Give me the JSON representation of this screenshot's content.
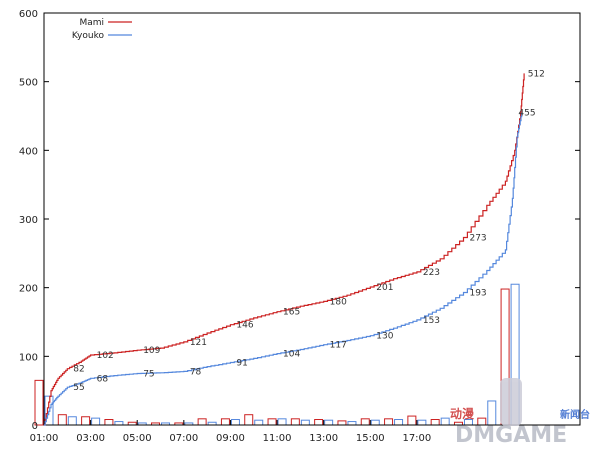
{
  "chart_data": {
    "type": "line",
    "xlim": [
      1,
      24
    ],
    "ylim": [
      0,
      600
    ],
    "y_ticks": [
      0,
      100,
      200,
      300,
      400,
      500,
      600
    ],
    "x_ticks": [
      {
        "x": 1,
        "label": "01:00"
      },
      {
        "x": 3,
        "label": "03:00"
      },
      {
        "x": 5,
        "label": "05:00"
      },
      {
        "x": 7,
        "label": "07:00"
      },
      {
        "x": 9,
        "label": "09:00"
      },
      {
        "x": 11,
        "label": "11:00"
      },
      {
        "x": 13,
        "label": "13:00"
      },
      {
        "x": 15,
        "label": "15:00"
      },
      {
        "x": 17,
        "label": "17:00"
      }
    ],
    "legend_position": "top-left",
    "grid": false,
    "series": [
      {
        "name": "Mami",
        "color": "#cc2222",
        "points": [
          [
            1,
            0
          ],
          [
            1.3,
            50
          ],
          [
            1.6,
            68
          ],
          [
            2,
            82
          ],
          [
            2.6,
            93
          ],
          [
            3,
            102
          ],
          [
            4,
            105
          ],
          [
            5,
            109
          ],
          [
            6,
            112
          ],
          [
            7,
            121
          ],
          [
            8,
            134
          ],
          [
            9,
            146
          ],
          [
            10,
            156
          ],
          [
            11,
            165
          ],
          [
            12,
            173
          ],
          [
            13,
            180
          ],
          [
            14,
            189
          ],
          [
            15,
            201
          ],
          [
            16,
            213
          ],
          [
            17,
            223
          ],
          [
            18,
            242
          ],
          [
            19,
            273
          ],
          [
            20,
            320
          ],
          [
            20.8,
            355
          ],
          [
            21.2,
            400
          ],
          [
            21.45,
            455
          ],
          [
            21.6,
            512
          ]
        ],
        "labels": [
          {
            "x": 2,
            "y": 82,
            "text": "82"
          },
          {
            "x": 3,
            "y": 102,
            "text": "102"
          },
          {
            "x": 5,
            "y": 109,
            "text": "109"
          },
          {
            "x": 7,
            "y": 121,
            "text": "121"
          },
          {
            "x": 9,
            "y": 146,
            "text": "146"
          },
          {
            "x": 11,
            "y": 165,
            "text": "165"
          },
          {
            "x": 13,
            "y": 180,
            "text": "180"
          },
          {
            "x": 15,
            "y": 201,
            "text": "201"
          },
          {
            "x": 17,
            "y": 223,
            "text": "223"
          },
          {
            "x": 19,
            "y": 273,
            "text": "273"
          },
          {
            "x": 21.5,
            "y": 512,
            "text": "512"
          }
        ]
      },
      {
        "name": "Kyouko",
        "color": "#5588dd",
        "points": [
          [
            1,
            0
          ],
          [
            1.3,
            30
          ],
          [
            1.6,
            42
          ],
          [
            2,
            55
          ],
          [
            2.6,
            62
          ],
          [
            3,
            68
          ],
          [
            4,
            72
          ],
          [
            5,
            75
          ],
          [
            6,
            76
          ],
          [
            7,
            78
          ],
          [
            8,
            85
          ],
          [
            9,
            91
          ],
          [
            10,
            97
          ],
          [
            11,
            104
          ],
          [
            12,
            110
          ],
          [
            13,
            117
          ],
          [
            14,
            123
          ],
          [
            15,
            130
          ],
          [
            16,
            141
          ],
          [
            17,
            153
          ],
          [
            18,
            170
          ],
          [
            19,
            193
          ],
          [
            20,
            225
          ],
          [
            20.8,
            255
          ],
          [
            21.1,
            330
          ],
          [
            21.3,
            420
          ],
          [
            21.5,
            455
          ]
        ],
        "labels": [
          {
            "x": 2,
            "y": 55,
            "text": "55"
          },
          {
            "x": 3,
            "y": 68,
            "text": "68"
          },
          {
            "x": 5,
            "y": 75,
            "text": "75"
          },
          {
            "x": 7,
            "y": 78,
            "text": "78"
          },
          {
            "x": 9,
            "y": 91,
            "text": "91"
          },
          {
            "x": 11,
            "y": 104,
            "text": "104"
          },
          {
            "x": 13,
            "y": 117,
            "text": "117"
          },
          {
            "x": 15,
            "y": 130,
            "text": "130"
          },
          {
            "x": 17,
            "y": 153,
            "text": "153"
          },
          {
            "x": 19,
            "y": 193,
            "text": "193"
          },
          {
            "x": 21.1,
            "y": 455,
            "text": "455"
          }
        ]
      }
    ],
    "hourly_bars": {
      "x": [
        1,
        2,
        3,
        4,
        5,
        6,
        7,
        8,
        9,
        10,
        11,
        12,
        13,
        14,
        15,
        16,
        17,
        18,
        19,
        20,
        21
      ],
      "Mami": [
        65,
        15,
        12,
        8,
        4,
        3,
        3,
        9,
        9,
        15,
        9,
        9,
        8,
        6,
        9,
        9,
        13,
        8,
        4,
        10,
        198
      ],
      "Kyouko": [
        42,
        12,
        10,
        5,
        3,
        3,
        3,
        4,
        8,
        7,
        9,
        7,
        7,
        5,
        7,
        8,
        7,
        10,
        8,
        35,
        205
      ]
    }
  },
  "watermark": {
    "text_top": "动漫",
    "text_side": "新闻台",
    "text_main": "DMGAME"
  }
}
